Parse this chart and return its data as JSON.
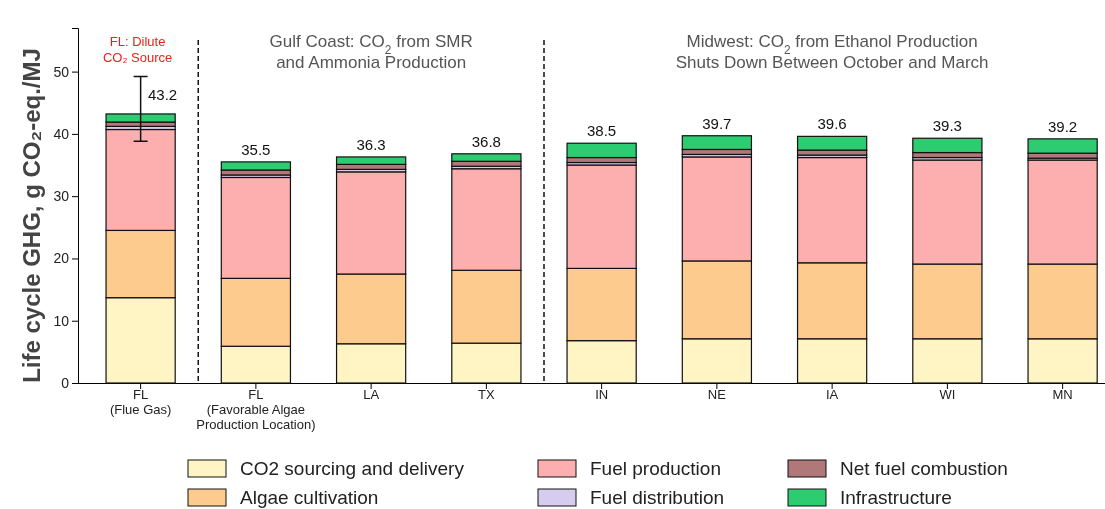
{
  "chart_data": {
    "type": "bar",
    "stacked": true,
    "categories": [
      "FL\n(Flue Gas)",
      "FL\n(Favorable Algae\nProduction Location)",
      "LA",
      "TX",
      "IN",
      "NE",
      "IA",
      "WI",
      "MN"
    ],
    "series": [
      {
        "name": "CO2 sourcing and delivery",
        "color": "#fff4c4",
        "values": [
          13.7,
          5.9,
          6.3,
          6.4,
          6.8,
          7.1,
          7.1,
          7.1,
          7.1
        ]
      },
      {
        "name": "Algae cultivation",
        "color": "#fdcb8e",
        "values": [
          10.8,
          10.9,
          11.2,
          11.7,
          11.6,
          12.5,
          12.2,
          12.0,
          12.0
        ]
      },
      {
        "name": "Fuel production",
        "color": "#fdaeae",
        "values": [
          16.2,
          16.2,
          16.4,
          16.3,
          16.6,
          16.7,
          16.9,
          16.7,
          16.7
        ]
      },
      {
        "name": "Fuel distribution",
        "color": "#d6ccf0",
        "values": [
          0.5,
          0.4,
          0.4,
          0.4,
          0.4,
          0.4,
          0.4,
          0.4,
          0.3
        ]
      },
      {
        "name": "Net fuel combustion",
        "color": "#b07878",
        "values": [
          0.7,
          0.8,
          0.8,
          0.8,
          0.8,
          0.8,
          0.8,
          0.8,
          0.8
        ]
      },
      {
        "name": "Infrastructure",
        "color": "#2ecc71",
        "values": [
          1.3,
          1.3,
          1.2,
          1.2,
          2.3,
          2.2,
          2.2,
          2.3,
          2.3
        ],
        "errors": [
          [
            38.8,
            49.2
          ],
          null,
          null,
          null,
          null,
          null,
          null,
          null,
          null
        ]
      }
    ],
    "totals": [
      "43.2",
      "35.5",
      "36.3",
      "36.8",
      "38.5",
      "39.7",
      "39.6",
      "39.3",
      "39.2"
    ],
    "ylabel": "Life cycle GHG, g CO₂-eq./MJ",
    "ylim": [
      0,
      57
    ],
    "yticks": [
      0,
      10,
      20,
      30,
      40,
      50
    ],
    "annotations": [
      "FL: Dilute\nCO₂ Source",
      "Gulf Coast: CO$_{2}$ from SMR\nand Ammonia Production",
      "Midwest: CO$_{2}$ from Ethanol Production\nShuts Down Between October and March"
    ],
    "legend": "bottom",
    "grid": false
  }
}
